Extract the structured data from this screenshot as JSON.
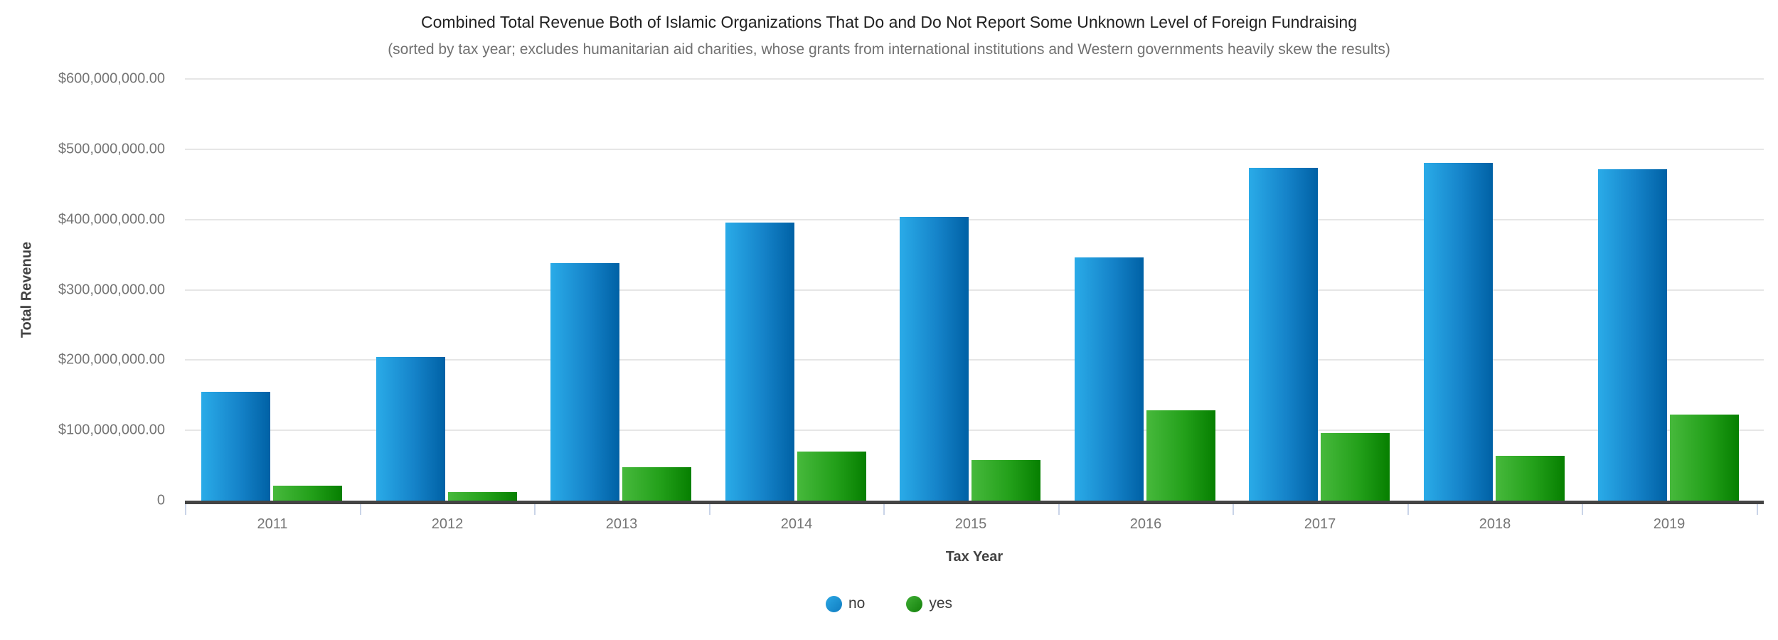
{
  "title": "Combined Total Revenue Both of Islamic Organizations That Do and Do Not Report Some Unknown Level of Foreign Fundraising",
  "subtitle": "(sorted by tax year; excludes humanitarian aid charities, whose grants from international institutions and Western governments heavily skew the results)",
  "chart_data": {
    "type": "bar",
    "title": "Combined Total Revenue Both of Islamic Organizations That Do and Do Not Report Some Unknown Level of Foreign Fundraising",
    "subtitle": "(sorted by tax year; excludes humanitarian aid charities, whose grants from international institutions and Western governments heavily skew the results)",
    "xlabel": "Tax Year",
    "ylabel": "Total Revenue",
    "categories": [
      "2011",
      "2012",
      "2013",
      "2014",
      "2015",
      "2016",
      "2017",
      "2018",
      "2019"
    ],
    "series": [
      {
        "name": "no",
        "color_light": "#2aabe8",
        "color_dark": "#0061a5",
        "values": [
          155000000,
          204000000,
          338000000,
          396000000,
          404000000,
          346000000,
          474000000,
          481000000,
          472000000
        ]
      },
      {
        "name": "yes",
        "color_light": "#47b93c",
        "color_dark": "#067f00",
        "values": [
          21000000,
          12000000,
          48000000,
          70000000,
          58000000,
          128000000,
          96000000,
          64000000,
          122000000
        ]
      }
    ],
    "ylim": [
      0,
      600000000
    ],
    "grid": true,
    "legend_position": "bottom",
    "y_ticks": [
      {
        "value": 600000000,
        "label": "$600,000,000.00"
      },
      {
        "value": 500000000,
        "label": "$500,000,000.00"
      },
      {
        "value": 400000000,
        "label": "$400,000,000.00"
      },
      {
        "value": 300000000,
        "label": "$300,000,000.00"
      },
      {
        "value": 200000000,
        "label": "$200,000,000.00"
      },
      {
        "value": 100000000,
        "label": "$100,000,000.00"
      },
      {
        "value": 0,
        "label": "0"
      }
    ]
  },
  "legend": {
    "items": [
      {
        "label": "no",
        "color": "#1e96d6"
      },
      {
        "label": "yes",
        "color": "#2f9322"
      }
    ]
  },
  "layout_colors": {
    "gridline": "#e6e6e6",
    "axis_line": "#444444",
    "tick_stub": "#c9d4e8",
    "tick_label": "#757575",
    "axis_title": "#424242"
  }
}
